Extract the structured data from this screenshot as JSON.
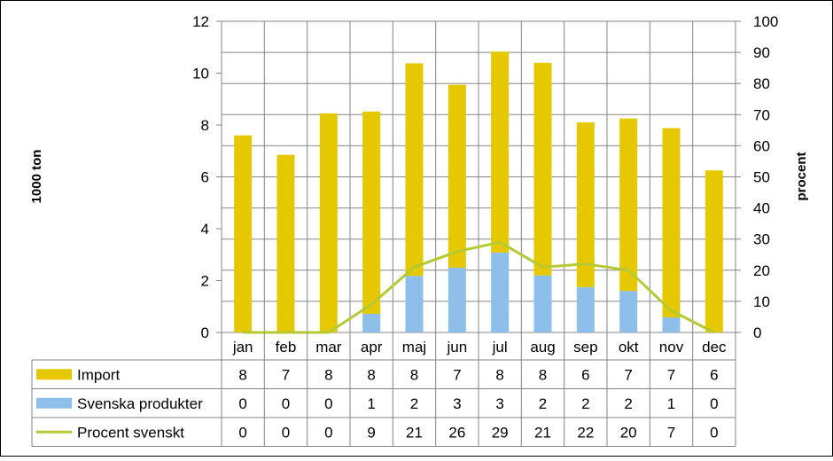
{
  "chart_data": {
    "type": "bar",
    "stacked": true,
    "categories": [
      "jan",
      "feb",
      "mar",
      "apr",
      "maj",
      "jun",
      "jul",
      "aug",
      "sep",
      "okt",
      "nov",
      "dec"
    ],
    "series": [
      {
        "name": "Import",
        "axis": "left",
        "kind": "bar",
        "color": "#E6C800",
        "values": [
          7.6,
          6.85,
          8.45,
          7.8,
          8.2,
          7.05,
          7.75,
          8.2,
          6.35,
          6.65,
          7.3,
          6.25
        ],
        "table": [
          "8",
          "7",
          "8",
          "8",
          "8",
          "7",
          "8",
          "8",
          "6",
          "7",
          "7",
          "6"
        ]
      },
      {
        "name": "Svenska produkter",
        "axis": "left",
        "kind": "bar",
        "color": "#8DBFEA",
        "values": [
          0,
          0,
          0,
          0.72,
          2.18,
          2.5,
          3.08,
          2.2,
          1.75,
          1.6,
          0.58,
          0
        ],
        "table": [
          "0",
          "0",
          "0",
          "1",
          "2",
          "3",
          "3",
          "2",
          "2",
          "2",
          "1",
          "0"
        ]
      },
      {
        "name": "Procent svenskt",
        "axis": "right",
        "kind": "line",
        "color": "#B5C934",
        "values": [
          0,
          0,
          0,
          9,
          21,
          26,
          29,
          21,
          22,
          20,
          7,
          0
        ],
        "table": [
          "0",
          "0",
          "0",
          "9",
          "21",
          "26",
          "29",
          "21",
          "22",
          "20",
          "7",
          "0"
        ]
      }
    ],
    "yleft": {
      "label": "1000 ton",
      "ylim": [
        0,
        12
      ],
      "ticks": [
        "0",
        "2",
        "4",
        "6",
        "8",
        "10",
        "12"
      ]
    },
    "yright": {
      "label": "procent",
      "ylim": [
        0,
        100
      ],
      "ticks": [
        "0",
        "10",
        "20",
        "30",
        "40",
        "50",
        "60",
        "70",
        "80",
        "90",
        "100"
      ]
    },
    "grid": true,
    "data_table": true
  }
}
